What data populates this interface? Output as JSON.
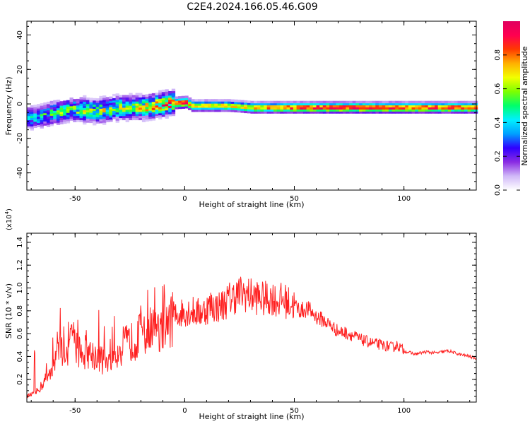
{
  "title": "C2E4.2024.166.05.46.G09",
  "chart_data": [
    {
      "type": "heatmap",
      "xlabel": "Height of straight line (km)",
      "ylabel": "Frequency (Hz)",
      "xlim": [
        -72,
        133
      ],
      "ylim": [
        -50,
        48
      ],
      "x_ticks": [
        -50,
        0,
        50,
        100
      ],
      "y_ticks": [
        -40,
        -20,
        0,
        20,
        40
      ],
      "colorbar": {
        "label": "Normalized spectral amplitude",
        "range": [
          0,
          1
        ],
        "ticks": [
          0.0,
          0.2,
          0.4,
          0.6,
          0.8
        ],
        "tick_labels": [
          "0.0",
          "0.2",
          "0.4",
          "0.6",
          "0.8"
        ],
        "colormap": [
          "#ffffff",
          "#d0b8f8",
          "#8a2be2",
          "#2f00ff",
          "#00a0ff",
          "#00f0ff",
          "#00ff6a",
          "#7dff00",
          "#f2ff00",
          "#ffb000",
          "#ff3a00",
          "#ff0050",
          "#e0005f"
        ]
      },
      "ridge": {
        "x": [
          -70,
          -60,
          -50,
          -40,
          -30,
          -20,
          -10,
          0,
          3,
          10,
          20,
          30,
          40,
          50,
          60,
          80,
          100,
          133
        ],
        "frequency_hz": [
          -8,
          -5,
          -3,
          -4,
          -2,
          -2,
          0,
          1,
          -1,
          -1,
          -1,
          -2,
          -2,
          -2,
          -2,
          -2,
          -2,
          -2
        ],
        "amplitude": [
          0.35,
          0.45,
          0.5,
          0.55,
          0.55,
          0.6,
          0.75,
          0.9,
          0.7,
          0.75,
          0.7,
          0.75,
          0.8,
          0.85,
          0.9,
          0.9,
          0.85,
          0.85
        ]
      }
    },
    {
      "type": "line",
      "xlabel": "Height of straight line (km)",
      "ylabel": "SNR (10 * v/v)",
      "y_multiplier": "(x10",
      "y_multiplier_exp": "4",
      "y_multiplier_close": ")",
      "xlim": [
        -72,
        133
      ],
      "ylim": [
        0,
        1.48
      ],
      "x_ticks": [
        -50,
        0,
        50,
        100
      ],
      "y_ticks": [
        0.2,
        0.4,
        0.6,
        0.8,
        1.0,
        1.2,
        1.4
      ],
      "color": "#ff2020",
      "series": [
        {
          "x": [
            -72,
            -68,
            -65,
            -62,
            -60,
            -58,
            -56,
            -54,
            -52,
            -50,
            -48,
            -45,
            -42,
            -40,
            -38,
            -35,
            -32,
            -30,
            -28,
            -25,
            -22,
            -20,
            -18,
            -16,
            -14,
            -12,
            -10,
            -8,
            -6,
            -4,
            -2,
            0,
            3,
            6,
            9,
            12,
            15,
            18,
            20,
            22,
            25,
            28,
            30,
            33,
            36,
            40,
            42,
            45,
            48,
            50,
            53,
            56,
            60,
            63,
            66,
            70,
            75,
            80,
            85,
            90,
            95,
            97,
            100,
            105,
            110,
            115,
            120,
            125,
            130,
            133
          ],
          "y": [
            0.05,
            0.08,
            0.15,
            0.25,
            0.35,
            0.4,
            0.5,
            0.45,
            0.55,
            0.5,
            0.45,
            0.45,
            0.42,
            0.4,
            0.38,
            0.38,
            0.42,
            0.45,
            0.5,
            0.52,
            0.55,
            0.6,
            0.58,
            0.6,
            0.62,
            0.6,
            0.65,
            0.7,
            0.72,
            0.75,
            0.78,
            0.8,
            0.8,
            0.78,
            0.8,
            0.85,
            0.83,
            0.86,
            0.9,
            0.92,
            0.95,
            0.95,
            0.93,
            0.92,
            0.9,
            0.92,
            0.88,
            0.9,
            0.86,
            0.85,
            0.8,
            0.82,
            0.75,
            0.72,
            0.68,
            0.62,
            0.6,
            0.55,
            0.52,
            0.5,
            0.48,
            0.5,
            0.45,
            0.42,
            0.44,
            0.43,
            0.45,
            0.42,
            0.4,
            0.38
          ]
        }
      ]
    }
  ]
}
